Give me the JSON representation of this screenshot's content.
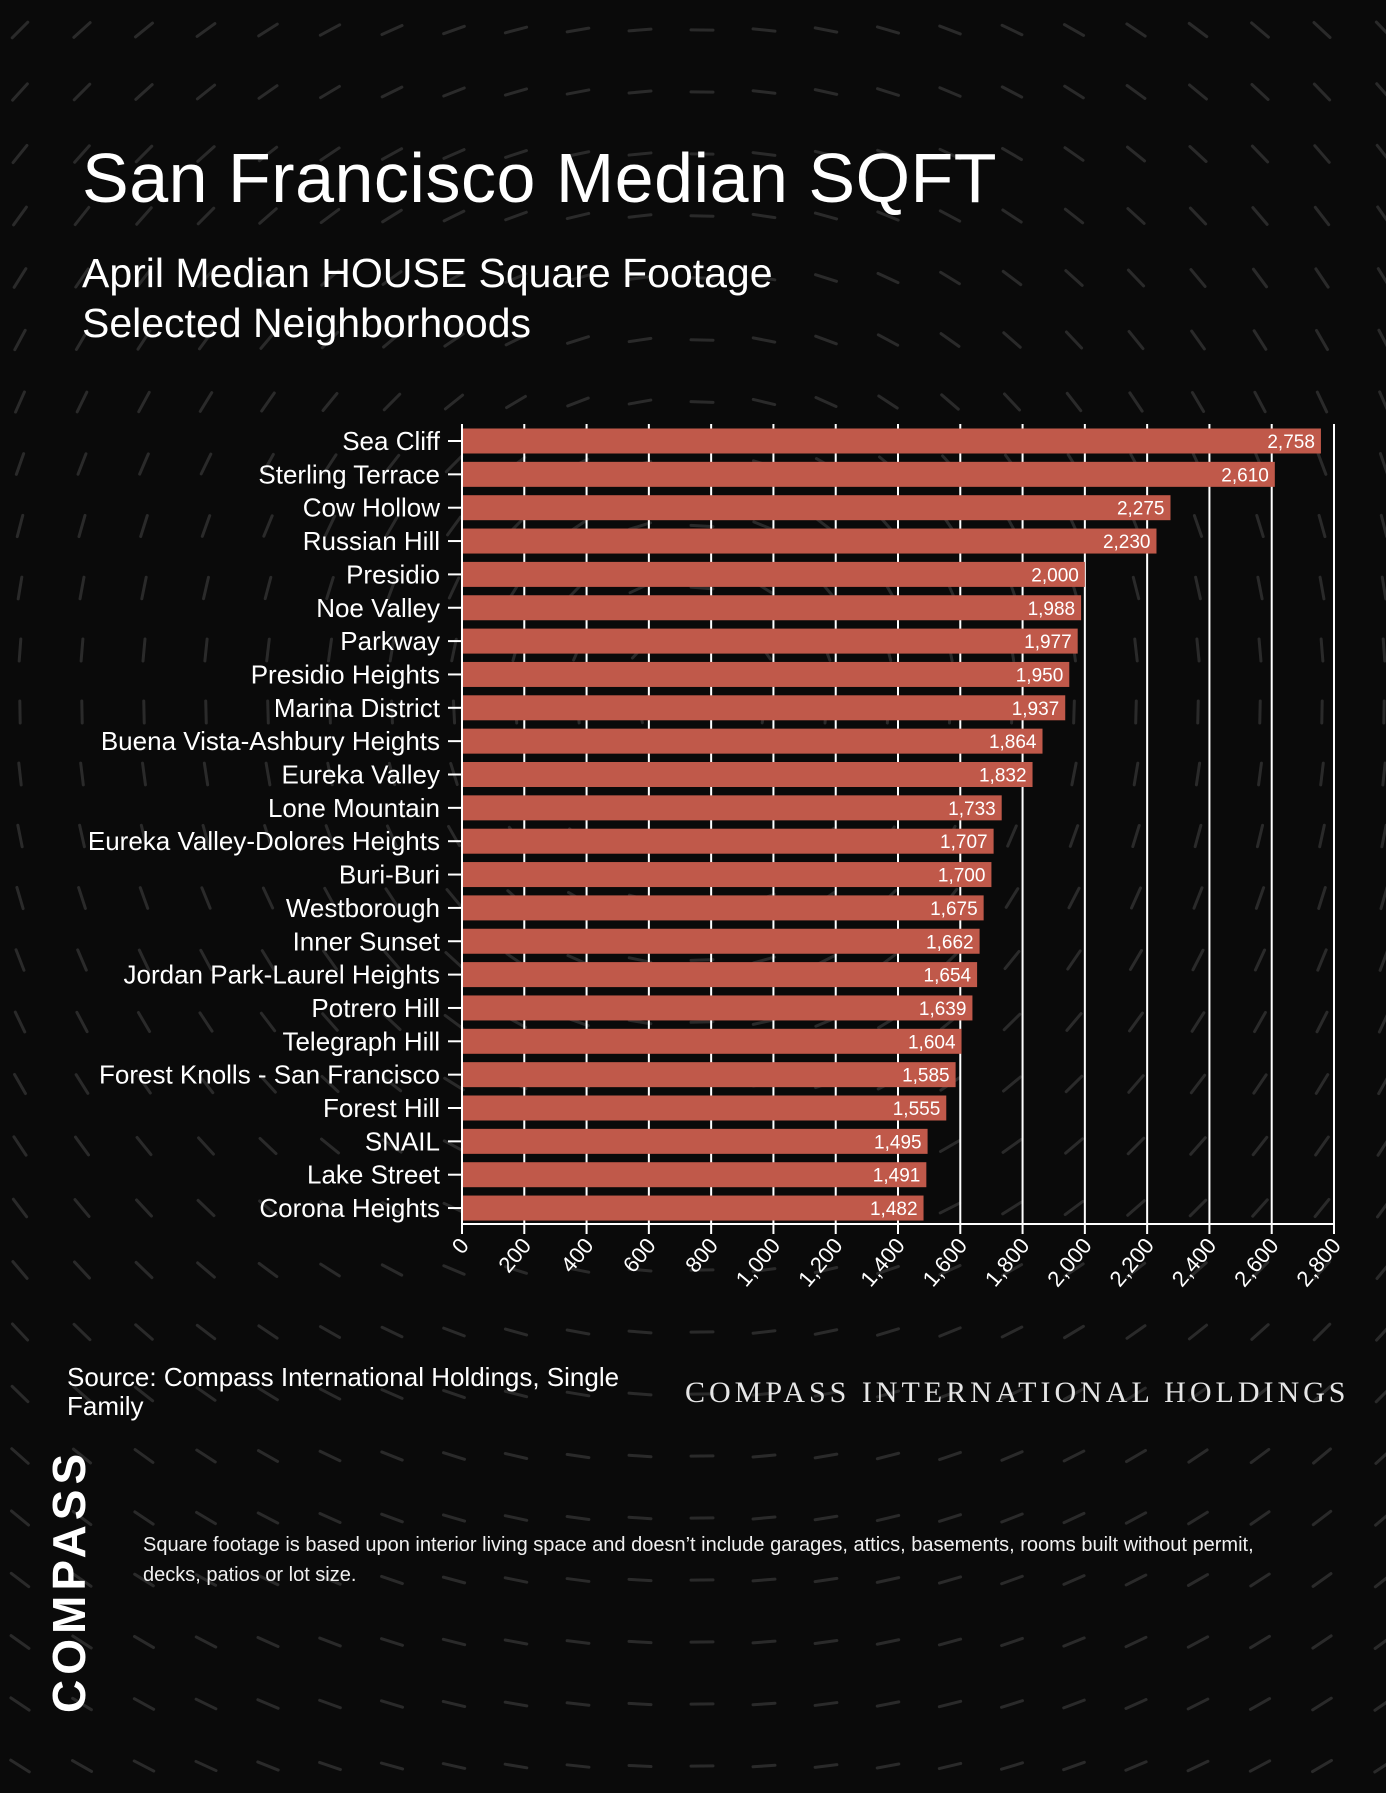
{
  "header": {
    "title": "San Francisco Median SQFT",
    "subtitle_line1": "April Median HOUSE Square Footage",
    "subtitle_line2": "Selected Neighborhoods"
  },
  "colors": {
    "background": "#0a0a0a",
    "bar": "#c0594a",
    "grid": "#ffffff",
    "text": "#ffffff"
  },
  "chart_data": {
    "type": "bar",
    "orientation": "horizontal",
    "categories": [
      "Sea Cliff",
      "Sterling Terrace",
      "Cow Hollow",
      "Russian Hill",
      "Presidio",
      "Noe Valley",
      "Parkway",
      "Presidio Heights",
      "Marina District",
      "Buena Vista-Ashbury Heights",
      "Eureka Valley",
      "Lone Mountain",
      "Eureka Valley-Dolores Heights",
      "Buri-Buri",
      "Westborough",
      "Inner Sunset",
      "Jordan Park-Laurel Heights",
      "Potrero Hill",
      "Telegraph Hill",
      "Forest Knolls - San Francisco",
      "Forest Hill",
      "SNAIL",
      "Lake Street",
      "Corona Heights"
    ],
    "values": [
      2758,
      2610,
      2275,
      2230,
      2000,
      1988,
      1977,
      1950,
      1937,
      1864,
      1832,
      1733,
      1707,
      1700,
      1675,
      1662,
      1654,
      1639,
      1604,
      1585,
      1555,
      1495,
      1491,
      1482
    ],
    "value_labels": [
      "2,758",
      "2,610",
      "2,275",
      "2,230",
      "2,000",
      "1,988",
      "1,977",
      "1,950",
      "1,937",
      "1,864",
      "1,832",
      "1,733",
      "1,707",
      "1,700",
      "1,675",
      "1,662",
      "1,654",
      "1,639",
      "1,604",
      "1,585",
      "1,555",
      "1,495",
      "1,491",
      "1,482"
    ],
    "xlim": [
      0,
      2800
    ],
    "x_ticks": [
      0,
      200,
      400,
      600,
      800,
      1000,
      1200,
      1400,
      1600,
      1800,
      2000,
      2200,
      2400,
      2600,
      2800
    ],
    "x_tick_labels": [
      "0",
      "200",
      "400",
      "600",
      "800",
      "1,000",
      "1,200",
      "1,400",
      "1,600",
      "1,800",
      "2,000",
      "2,200",
      "2,400",
      "2,600",
      "2,800"
    ],
    "grid": true
  },
  "footer": {
    "source": "Source: Compass International Holdings, Single Family",
    "brand_wordmark": "COMPASS INTERNATIONAL HOLDINGS",
    "logo": "COMPASS",
    "footnote": "Square footage is based upon interior living space and doesn’t include garages, attics, basements, rooms built without permit, decks, patios or lot size."
  }
}
